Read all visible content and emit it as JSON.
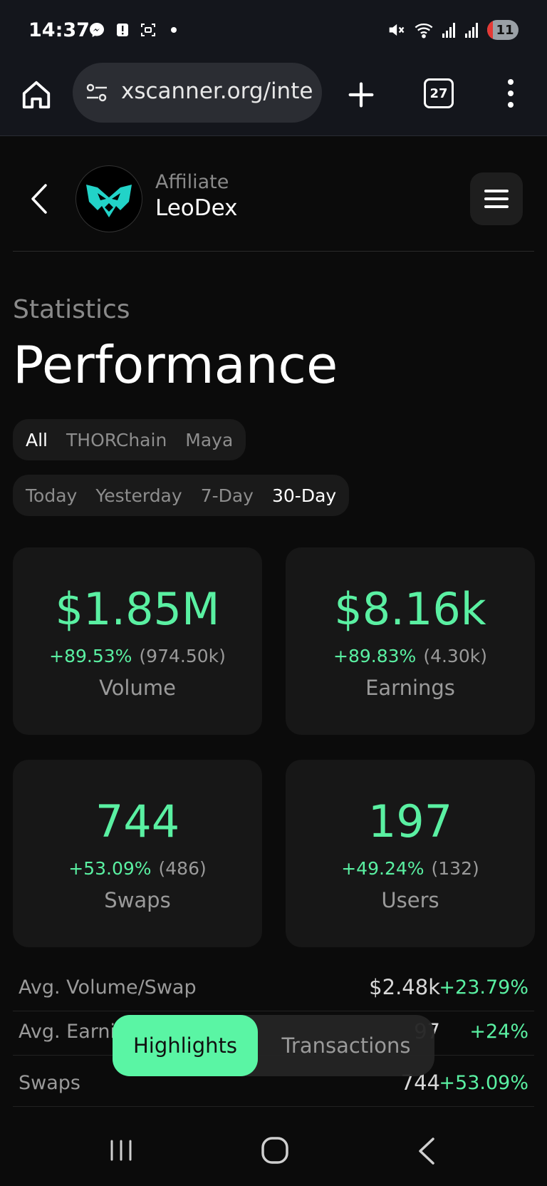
{
  "status_bar": {
    "time": "14:37",
    "battery_level": "11",
    "icons_left": [
      "messenger-icon",
      "alert-icon",
      "screenshot-icon",
      "notification-dot"
    ],
    "icons_right": [
      "mute-icon",
      "wifi-icon",
      "signal-icon",
      "signal-icon",
      "battery-icon"
    ]
  },
  "browser": {
    "url": "xscanner.org/inte",
    "tab_count": "27"
  },
  "header": {
    "subtitle": "Affiliate",
    "name": "LeoDex"
  },
  "page": {
    "section_label": "Statistics",
    "title": "Performance"
  },
  "network_filter": {
    "options": [
      "All",
      "THORChain",
      "Maya"
    ],
    "selected": "All"
  },
  "period_filter": {
    "options": [
      "Today",
      "Yesterday",
      "7-Day",
      "30-Day"
    ],
    "selected": "30-Day"
  },
  "cards": [
    {
      "value": "$1.85M",
      "change": "+89.53%",
      "previous": "(974.50k)",
      "label": "Volume"
    },
    {
      "value": "$8.16k",
      "change": "+89.83%",
      "previous": "(4.30k)",
      "label": "Earnings"
    },
    {
      "value": "744",
      "change": "+53.09%",
      "previous": "(486)",
      "label": "Swaps"
    },
    {
      "value": "197",
      "change": "+49.24%",
      "previous": "(132)",
      "label": "Users"
    }
  ],
  "stats": [
    {
      "name": "Avg. Volume/Swap",
      "value": "$2.48k",
      "change": "+23.79%"
    },
    {
      "name": "Avg. Earni",
      "value": "97",
      "change": "+24%"
    },
    {
      "name": "Swaps",
      "value": "744",
      "change": "+53.09%"
    }
  ],
  "bottom_tabs": {
    "highlights": "Highlights",
    "transactions": "Transactions",
    "selected": "Highlights"
  },
  "colors": {
    "accent": "#5af0a2",
    "background": "#0b0b0b",
    "card": "#171717",
    "logo_teal": "#22d3c8"
  }
}
